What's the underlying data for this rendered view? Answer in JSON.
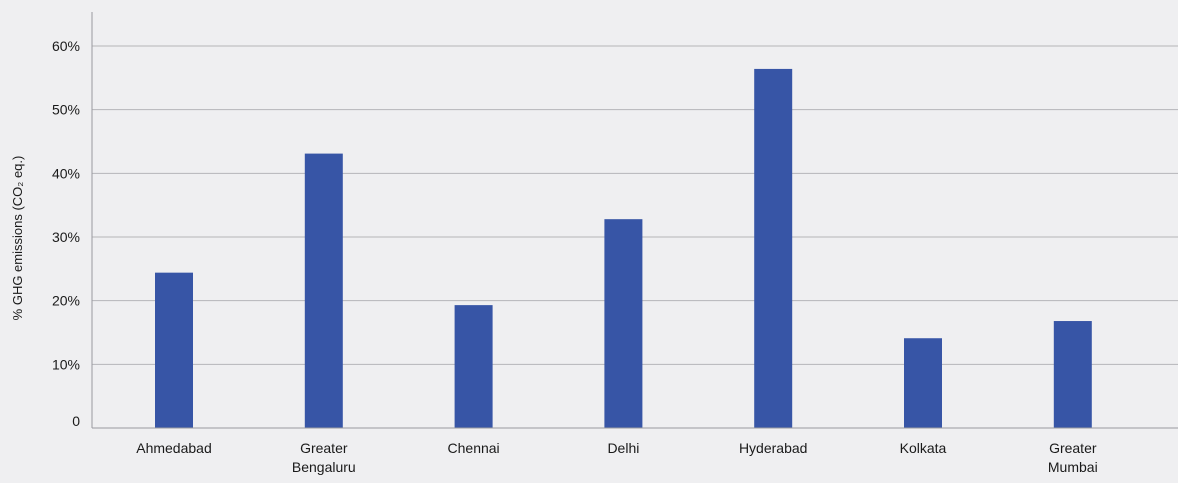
{
  "chart_data": {
    "type": "bar",
    "title": "",
    "xlabel": "",
    "ylabel": "% GHG emissions (CO₂ eq.)",
    "ylim": [
      0,
      60
    ],
    "y_ticks": [
      "0",
      "10%",
      "20%",
      "30%",
      "40%",
      "50%",
      "60%"
    ],
    "y_tick_values": [
      0,
      10,
      20,
      30,
      40,
      50,
      60
    ],
    "grid": true,
    "categories": [
      [
        "Ahmedabad"
      ],
      [
        "Greater",
        "Bengaluru"
      ],
      [
        "Chennai"
      ],
      [
        "Delhi"
      ],
      [
        "Hyderabad"
      ],
      [
        "Kolkata"
      ],
      [
        "Greater",
        "Mumbai"
      ]
    ],
    "values": [
      24.4,
      43.1,
      19.3,
      32.8,
      56.4,
      14.1,
      16.8
    ],
    "bar_color": "#3755a6"
  }
}
